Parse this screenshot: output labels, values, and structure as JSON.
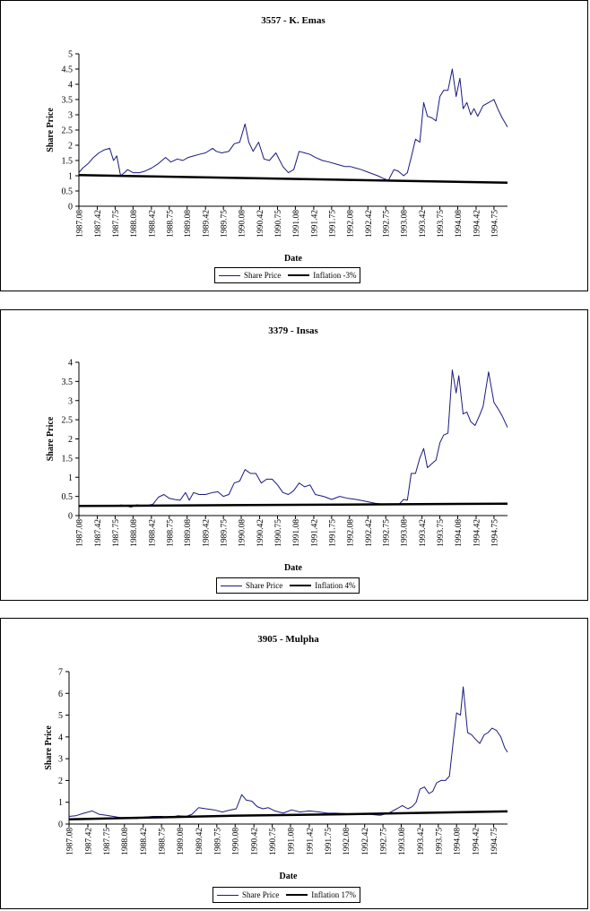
{
  "chart_data": [
    {
      "type": "line",
      "title": "3557 - K. Emas",
      "xlabel": "Date",
      "ylabel": "Share Price",
      "ylim": [
        0,
        5
      ],
      "yticks": [
        "0",
        "0.5",
        "1",
        "1.5",
        "2",
        "2.5",
        "3",
        "3.5",
        "4",
        "4.5",
        "5"
      ],
      "xticks": [
        "1987.08",
        "1987.42",
        "1987.75",
        "1988.08",
        "1988.42",
        "1988.75",
        "1989.08",
        "1989.42",
        "1989.75",
        "1990.08",
        "1990.42",
        "1990.75",
        "1991.08",
        "1991.42",
        "1991.75",
        "1992.08",
        "1992.42",
        "1992.75",
        "1993.08",
        "1993.42",
        "1993.75",
        "1994.08",
        "1994.42",
        "1994.75"
      ],
      "x_range": [
        1987.08,
        1995.0
      ],
      "series": [
        {
          "name": "Share Price",
          "color": "#1a1a80",
          "x": [
            1987.08,
            1987.15,
            1987.25,
            1987.35,
            1987.45,
            1987.55,
            1987.65,
            1987.72,
            1987.78,
            1987.85,
            1987.92,
            1987.98,
            1988.08,
            1988.2,
            1988.3,
            1988.42,
            1988.55,
            1988.68,
            1988.78,
            1988.9,
            1989.0,
            1989.1,
            1989.2,
            1989.3,
            1989.42,
            1989.55,
            1989.62,
            1989.72,
            1989.85,
            1989.95,
            1990.05,
            1990.15,
            1990.22,
            1990.3,
            1990.4,
            1990.5,
            1990.6,
            1990.72,
            1990.85,
            1990.95,
            1991.05,
            1991.15,
            1991.25,
            1991.35,
            1991.45,
            1991.58,
            1991.7,
            1991.8,
            1991.9,
            1992.0,
            1992.1,
            1992.2,
            1992.3,
            1992.45,
            1992.6,
            1992.72,
            1992.8,
            1992.9,
            1992.98,
            1993.08,
            1993.15,
            1993.22,
            1993.3,
            1993.38,
            1993.45,
            1993.52,
            1993.6,
            1993.68,
            1993.75,
            1993.82,
            1993.9,
            1993.98,
            1994.05,
            1994.12,
            1994.18,
            1994.25,
            1994.32,
            1994.38,
            1994.45,
            1994.55,
            1994.65,
            1994.75,
            1994.82,
            1994.9,
            1995.0
          ],
          "values": [
            1.1,
            1.25,
            1.4,
            1.6,
            1.75,
            1.85,
            1.9,
            1.5,
            1.65,
            1.0,
            1.1,
            1.2,
            1.1,
            1.1,
            1.15,
            1.25,
            1.4,
            1.6,
            1.45,
            1.55,
            1.5,
            1.6,
            1.65,
            1.7,
            1.75,
            1.9,
            1.8,
            1.75,
            1.8,
            2.05,
            2.1,
            2.7,
            2.1,
            1.8,
            2.1,
            1.55,
            1.5,
            1.75,
            1.3,
            1.1,
            1.2,
            1.8,
            1.75,
            1.7,
            1.6,
            1.5,
            1.45,
            1.4,
            1.35,
            1.3,
            1.3,
            1.25,
            1.2,
            1.1,
            1.0,
            0.9,
            0.85,
            1.2,
            1.15,
            1.0,
            1.1,
            1.6,
            2.2,
            2.1,
            3.4,
            2.95,
            2.9,
            2.8,
            3.6,
            3.8,
            3.8,
            4.5,
            3.6,
            4.2,
            3.2,
            3.4,
            3.0,
            3.2,
            2.95,
            3.3,
            3.4,
            3.5,
            3.2,
            2.9,
            2.6
          ]
        },
        {
          "name": "Inflation -3%",
          "color": "#000000",
          "thick": true,
          "x": [
            1987.08,
            1995.0
          ],
          "values": [
            1.02,
            0.77
          ]
        }
      ]
    },
    {
      "type": "line",
      "title": "3379 - Insas",
      "xlabel": "Date",
      "ylabel": "Share Price",
      "ylim": [
        0,
        4
      ],
      "yticks": [
        "0",
        "0.5",
        "1",
        "1.5",
        "2",
        "2.5",
        "3",
        "3.5",
        "4"
      ],
      "xticks": [
        "1987.08",
        "1987.42",
        "1987.75",
        "1988.08",
        "1988.42",
        "1988.75",
        "1989.08",
        "1989.42",
        "1989.75",
        "1990.08",
        "1990.42",
        "1990.75",
        "1991.08",
        "1991.42",
        "1991.75",
        "1992.08",
        "1992.42",
        "1992.75",
        "1993.08",
        "1993.42",
        "1993.75",
        "1994.08",
        "1994.42",
        "1994.75"
      ],
      "x_range": [
        1987.08,
        1995.0
      ],
      "series": [
        {
          "name": "Share Price",
          "color": "#1a1a80",
          "x": [
            1987.85,
            1987.95,
            1988.05,
            1988.15,
            1988.3,
            1988.45,
            1988.55,
            1988.65,
            1988.75,
            1988.85,
            1988.95,
            1989.05,
            1989.12,
            1989.2,
            1989.3,
            1989.42,
            1989.55,
            1989.65,
            1989.75,
            1989.85,
            1989.95,
            1990.05,
            1990.15,
            1990.25,
            1990.35,
            1990.45,
            1990.55,
            1990.65,
            1990.75,
            1990.85,
            1990.95,
            1991.05,
            1991.15,
            1991.25,
            1991.35,
            1991.45,
            1991.6,
            1991.75,
            1991.9,
            1992.05,
            1992.2,
            1992.35,
            1992.45,
            1992.55,
            1992.7,
            1992.85,
            1993.0,
            1993.08,
            1993.15,
            1993.22,
            1993.3,
            1993.38,
            1993.45,
            1993.52,
            1993.6,
            1993.68,
            1993.75,
            1993.82,
            1993.9,
            1993.98,
            1994.05,
            1994.1,
            1994.18,
            1994.25,
            1994.32,
            1994.4,
            1994.48,
            1994.55,
            1994.65,
            1994.75,
            1994.82,
            1994.9,
            1995.0
          ],
          "values": [
            0.28,
            0.25,
            0.22,
            0.28,
            0.25,
            0.3,
            0.48,
            0.55,
            0.45,
            0.42,
            0.4,
            0.6,
            0.4,
            0.6,
            0.55,
            0.55,
            0.6,
            0.62,
            0.5,
            0.55,
            0.85,
            0.9,
            1.2,
            1.1,
            1.1,
            0.85,
            0.95,
            0.95,
            0.8,
            0.6,
            0.55,
            0.65,
            0.85,
            0.75,
            0.8,
            0.55,
            0.5,
            0.42,
            0.5,
            0.45,
            0.42,
            0.38,
            0.35,
            0.32,
            0.3,
            0.28,
            0.3,
            0.42,
            0.4,
            1.1,
            1.1,
            1.5,
            1.75,
            1.25,
            1.35,
            1.45,
            1.9,
            2.1,
            2.15,
            3.8,
            3.2,
            3.65,
            2.65,
            2.7,
            2.45,
            2.35,
            2.6,
            2.85,
            3.75,
            2.95,
            2.8,
            2.6,
            2.3
          ]
        },
        {
          "name": "Inflation 4%",
          "color": "#000000",
          "thick": true,
          "x": [
            1987.08,
            1995.0
          ],
          "values": [
            0.25,
            0.31
          ]
        }
      ]
    },
    {
      "type": "line",
      "title": "3905 - Mulpha",
      "xlabel": "Date",
      "ylabel": "Share Price",
      "ylim": [
        0,
        7
      ],
      "yticks": [
        "0",
        "1",
        "2",
        "3",
        "4",
        "5",
        "6",
        "7"
      ],
      "xticks": [
        "1987.08",
        "1987.42",
        "1987.75",
        "1988.08",
        "1988.42",
        "1988.75",
        "1989.08",
        "1989.42",
        "1989.75",
        "1990.08",
        "1990.42",
        "1990.75",
        "1991.08",
        "1991.42",
        "1991.75",
        "1992.08",
        "1992.42",
        "1992.75",
        "1993.08",
        "1993.42",
        "1993.75",
        "1994.08",
        "1994.42",
        "1994.75"
      ],
      "x_range": [
        1987.08,
        1995.0
      ],
      "series": [
        {
          "name": "Share Price",
          "color": "#1a1a80",
          "x": [
            1987.08,
            1987.2,
            1987.35,
            1987.5,
            1987.62,
            1987.75,
            1987.88,
            1988.0,
            1988.15,
            1988.3,
            1988.45,
            1988.6,
            1988.75,
            1988.9,
            1989.05,
            1989.2,
            1989.3,
            1989.42,
            1989.55,
            1989.7,
            1989.85,
            1990.0,
            1990.1,
            1990.2,
            1990.28,
            1990.38,
            1990.48,
            1990.58,
            1990.68,
            1990.8,
            1990.95,
            1991.1,
            1991.25,
            1991.42,
            1991.6,
            1991.75,
            1991.9,
            1992.05,
            1992.2,
            1992.35,
            1992.5,
            1992.7,
            1992.85,
            1993.0,
            1993.1,
            1993.2,
            1993.28,
            1993.35,
            1993.42,
            1993.5,
            1993.58,
            1993.65,
            1993.72,
            1993.8,
            1993.88,
            1993.95,
            1994.02,
            1994.08,
            1994.15,
            1994.2,
            1994.28,
            1994.35,
            1994.42,
            1994.5,
            1994.58,
            1994.65,
            1994.72,
            1994.8,
            1994.88,
            1994.95,
            1995.0
          ],
          "values": [
            0.35,
            0.38,
            0.5,
            0.6,
            0.45,
            0.4,
            0.35,
            0.3,
            0.28,
            0.25,
            0.32,
            0.35,
            0.35,
            0.3,
            0.38,
            0.35,
            0.45,
            0.75,
            0.7,
            0.65,
            0.55,
            0.65,
            0.7,
            1.35,
            1.1,
            1.05,
            0.8,
            0.7,
            0.75,
            0.6,
            0.5,
            0.65,
            0.55,
            0.6,
            0.55,
            0.5,
            0.5,
            0.48,
            0.45,
            0.45,
            0.45,
            0.4,
            0.5,
            0.7,
            0.85,
            0.7,
            0.8,
            1.0,
            1.6,
            1.7,
            1.4,
            1.5,
            1.9,
            2.0,
            2.0,
            2.2,
            3.8,
            5.1,
            5.0,
            6.3,
            4.2,
            4.1,
            3.9,
            3.7,
            4.1,
            4.2,
            4.4,
            4.3,
            4.0,
            3.5,
            3.3
          ]
        },
        {
          "name": "Inflation 17%",
          "color": "#000000",
          "thick": true,
          "x": [
            1987.08,
            1990.0,
            1992.0,
            1995.0
          ],
          "values": [
            0.22,
            0.38,
            0.45,
            0.58
          ]
        }
      ]
    }
  ]
}
